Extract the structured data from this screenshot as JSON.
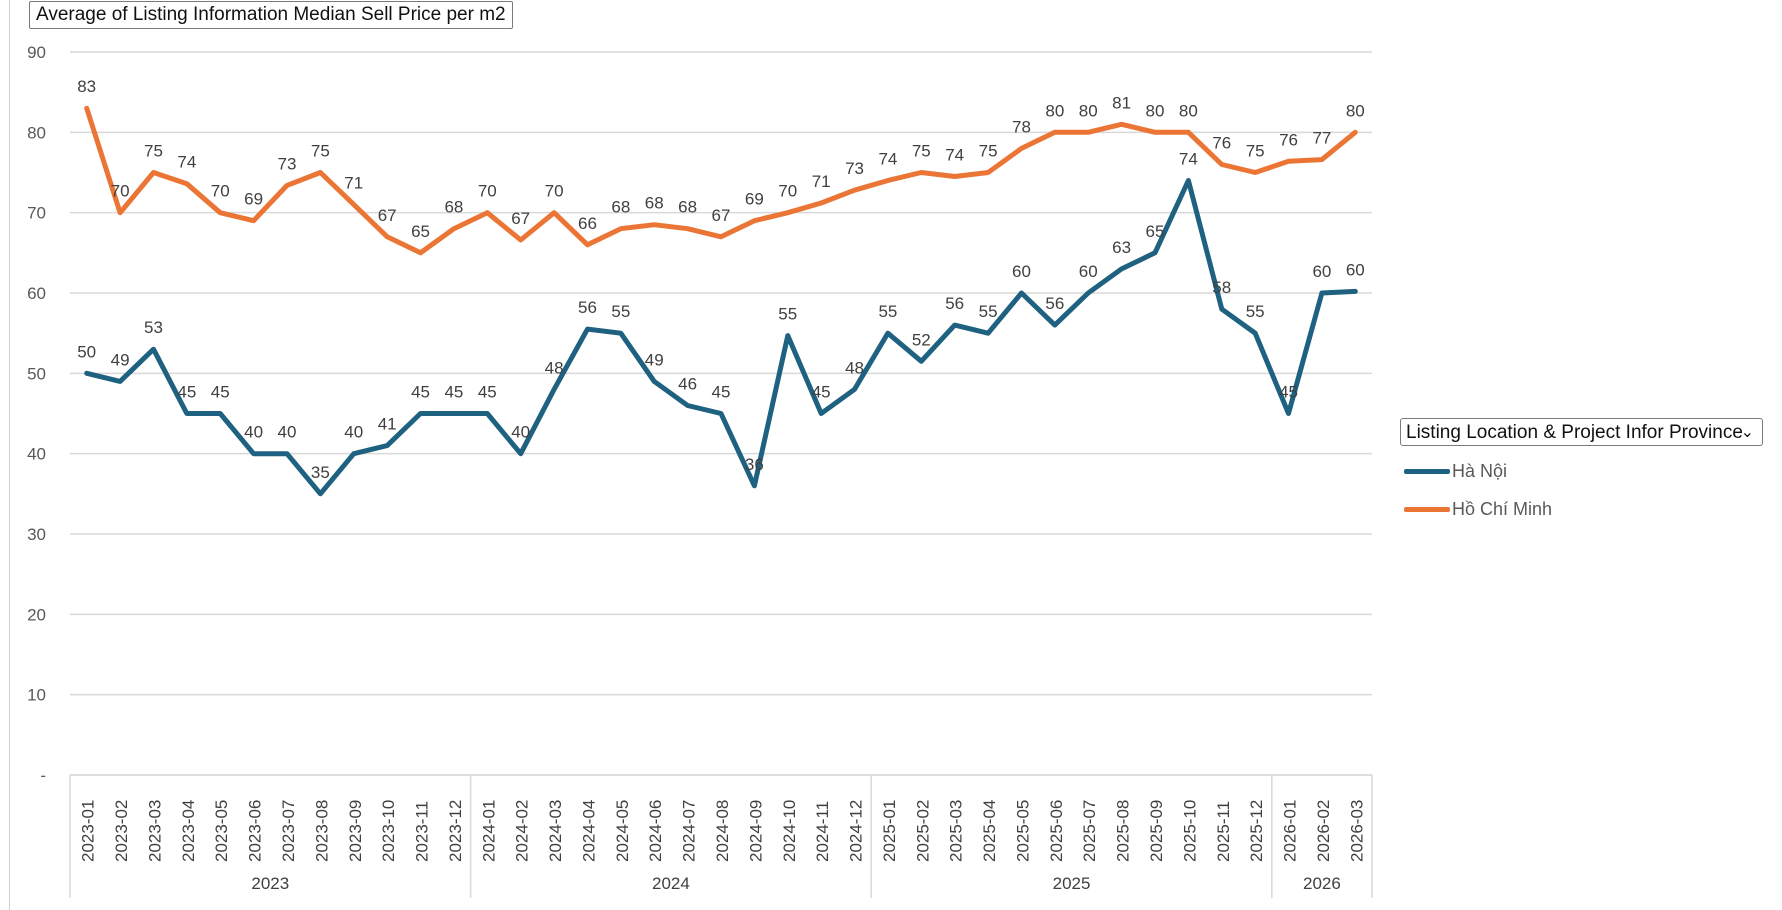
{
  "chart_data": {
    "type": "line",
    "title": "Average of Listing Information Median Sell Price per m2",
    "ylim": [
      0,
      90
    ],
    "y_ticks": [
      {
        "value": 90,
        "label": "90"
      },
      {
        "value": 80,
        "label": "80"
      },
      {
        "value": 70,
        "label": "70"
      },
      {
        "value": 60,
        "label": "60"
      },
      {
        "value": 50,
        "label": "50"
      },
      {
        "value": 40,
        "label": "40"
      },
      {
        "value": 30,
        "label": "30"
      },
      {
        "value": 20,
        "label": "20"
      },
      {
        "value": 10,
        "label": "10"
      },
      {
        "value": 0,
        "label": "-"
      }
    ],
    "categories": [
      "2023-01",
      "2023-02",
      "2023-03",
      "2023-04",
      "2023-05",
      "2023-06",
      "2023-07",
      "2023-08",
      "2023-09",
      "2023-10",
      "2023-11",
      "2023-12",
      "2024-01",
      "2024-02",
      "2024-03",
      "2024-04",
      "2024-05",
      "2024-06",
      "2024-07",
      "2024-08",
      "2024-09",
      "2024-10",
      "2024-11",
      "2024-12",
      "2025-01",
      "2025-02",
      "2025-03",
      "2025-04",
      "2025-05",
      "2025-06",
      "2025-07",
      "2025-08",
      "2025-09",
      "2025-10",
      "2025-11",
      "2025-12",
      "2026-01",
      "2026-02",
      "2026-03"
    ],
    "year_groups": [
      {
        "label": "2023",
        "count": 12
      },
      {
        "label": "2024",
        "count": 12
      },
      {
        "label": "2025",
        "count": 12
      },
      {
        "label": "2026",
        "count": 3
      }
    ],
    "series": [
      {
        "name": "Hà Nội",
        "color": "#1f6180",
        "values": [
          50,
          49,
          53,
          45,
          45,
          40,
          40,
          35,
          40,
          41,
          45,
          45,
          45,
          40,
          48,
          55.5,
          55,
          49,
          46,
          45,
          36,
          54.7,
          45,
          48,
          55,
          51.5,
          56,
          55,
          60,
          56,
          60,
          63,
          65,
          74,
          58,
          55,
          45,
          60,
          60.2
        ],
        "labels": [
          "50",
          "49",
          "53",
          "45",
          "45",
          "40",
          "40",
          "35",
          "40",
          "41",
          "45",
          "45",
          "45",
          "40",
          "48",
          "56",
          "55",
          "49",
          "46",
          "45",
          "36",
          "55",
          "45",
          "48",
          "55",
          "52",
          "56",
          "55",
          "60",
          "56",
          "60",
          "63",
          "65",
          "74",
          "58",
          "55",
          "45",
          "60",
          "60"
        ]
      },
      {
        "name": "Hồ Chí Minh",
        "color": "#eb7535",
        "values": [
          83,
          70,
          75,
          73.6,
          70,
          69,
          73.4,
          75,
          71,
          67,
          65,
          68,
          70,
          66.6,
          70,
          66,
          68,
          68.5,
          68,
          67,
          69,
          70,
          71.2,
          72.8,
          74,
          75,
          74.5,
          75,
          78,
          80,
          80,
          81,
          80,
          80,
          76,
          75,
          76.4,
          76.6,
          80
        ],
        "labels": [
          "83",
          "70",
          "75",
          "74",
          "70",
          "69",
          "73",
          "75",
          "71",
          "67",
          "65",
          "68",
          "70",
          "67",
          "70",
          "66",
          "68",
          "68",
          "68",
          "67",
          "69",
          "70",
          "71",
          "73",
          "74",
          "75",
          "74",
          "75",
          "78",
          "80",
          "80",
          "81",
          "80",
          "80",
          "76",
          "75",
          "76",
          "77",
          "80"
        ]
      }
    ]
  },
  "filter": {
    "label": "Listing Location & Project Infor  Province",
    "chevron_icon": "chevron-down-icon"
  },
  "legend": [
    {
      "name": "Hà Nội",
      "color": "#1f6180"
    },
    {
      "name": "Hồ Chí Minh",
      "color": "#eb7535"
    }
  ]
}
